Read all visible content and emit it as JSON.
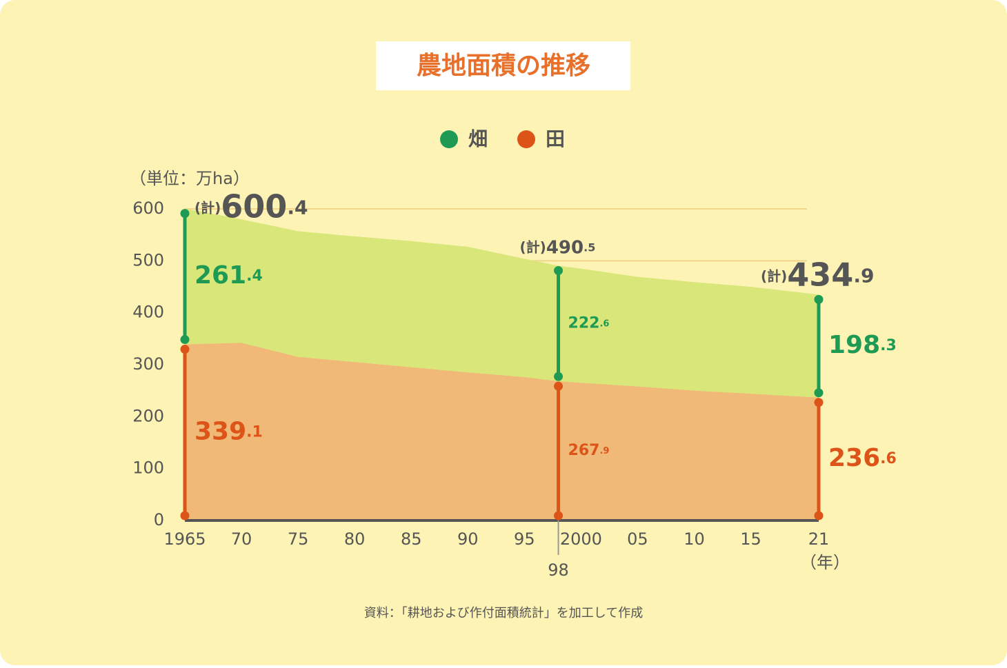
{
  "chart_data": {
    "type": "stacked-area",
    "title": "農地面積の推移",
    "y_unit": "（単位：万ha）",
    "x_unit": "（年）",
    "source": "資料：「耕地および作付面積統計」を加工して作成",
    "x": [
      1965,
      1970,
      1975,
      1980,
      1985,
      1990,
      1995,
      1998,
      2000,
      2005,
      2010,
      2015,
      2021
    ],
    "series": [
      {
        "name": "畑",
        "color": "#1f9a55",
        "area_color": "#d9e77a",
        "values": [
          261.4,
          238,
          242,
          242,
          243,
          242,
          228,
          222.6,
          220,
          211,
          209,
          206,
          198.3
        ]
      },
      {
        "name": "田",
        "color": "#dc5418",
        "area_color": "#f0b978",
        "values": [
          339.1,
          342,
          315,
          305,
          295,
          285,
          276,
          267.9,
          265,
          258,
          250,
          244,
          236.6
        ]
      }
    ],
    "totals_prefix": "(計)",
    "totals": [
      {
        "x": 1965,
        "value": 600.4
      },
      {
        "x": 1998,
        "value": 490.5
      },
      {
        "x": 2021,
        "value": 434.9
      }
    ],
    "xlim": [
      1965,
      2021
    ],
    "ylim": [
      0,
      600
    ],
    "yticks": [
      0,
      100,
      200,
      300,
      400,
      500,
      600
    ],
    "grid": true,
    "xticks": [
      1965,
      {
        "value": 1970,
        "label": "70"
      },
      {
        "value": 1975,
        "label": "75"
      },
      {
        "value": 1980,
        "label": "80"
      },
      {
        "value": 1985,
        "label": "85"
      },
      {
        "value": 1990,
        "label": "90"
      },
      {
        "value": 1995,
        "label": "95"
      },
      2000,
      {
        "value": 2005,
        "label": "05"
      },
      {
        "value": 2010,
        "label": "10"
      },
      {
        "value": 2015,
        "label": "15"
      },
      {
        "value": 2021,
        "label": "21"
      }
    ],
    "xticks_below": [
      {
        "value": 1998,
        "label": "98"
      }
    ]
  }
}
